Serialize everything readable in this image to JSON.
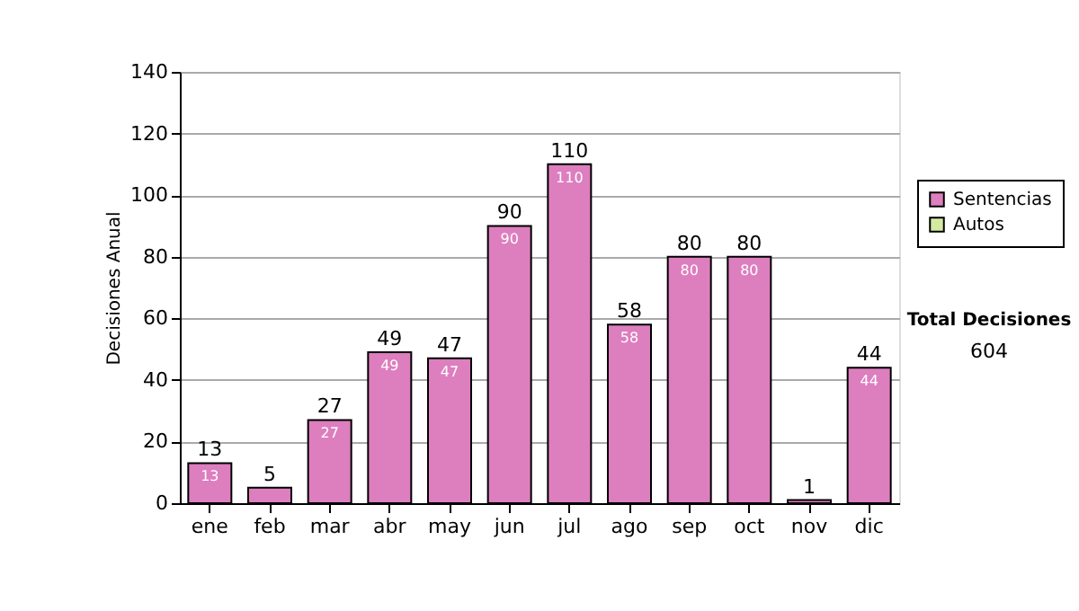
{
  "chart_data": {
    "type": "bar",
    "stacked": true,
    "ylabel": "Decisiones Anual",
    "categories": [
      "ene",
      "feb",
      "mar",
      "abr",
      "may",
      "jun",
      "jul",
      "ago",
      "sep",
      "oct",
      "nov",
      "dic"
    ],
    "series": [
      {
        "name": "Sentencias",
        "color": "#dd7ebf",
        "values": [
          13,
          5,
          27,
          49,
          47,
          90,
          110,
          58,
          80,
          80,
          1,
          44
        ],
        "value_labels": [
          "13",
          null,
          "27",
          "49",
          "47",
          "90",
          "110",
          "58",
          "80",
          "80",
          null,
          "44"
        ]
      },
      {
        "name": "Autos",
        "color": "#d4eaa0",
        "values": [
          0,
          0,
          0,
          0,
          0,
          0,
          0,
          0,
          0,
          0,
          0,
          0
        ]
      }
    ],
    "totals": [
      "13",
      "5",
      "27",
      "49",
      "47",
      "90",
      "110",
      "58",
      "80",
      "80",
      "1",
      "44"
    ],
    "ylim": [
      0,
      140
    ],
    "yticks": [
      0,
      20,
      40,
      60,
      80,
      100,
      120,
      140
    ],
    "grid": "y",
    "legend": "right",
    "annotations": [
      "Total Decisiones",
      "604"
    ]
  }
}
